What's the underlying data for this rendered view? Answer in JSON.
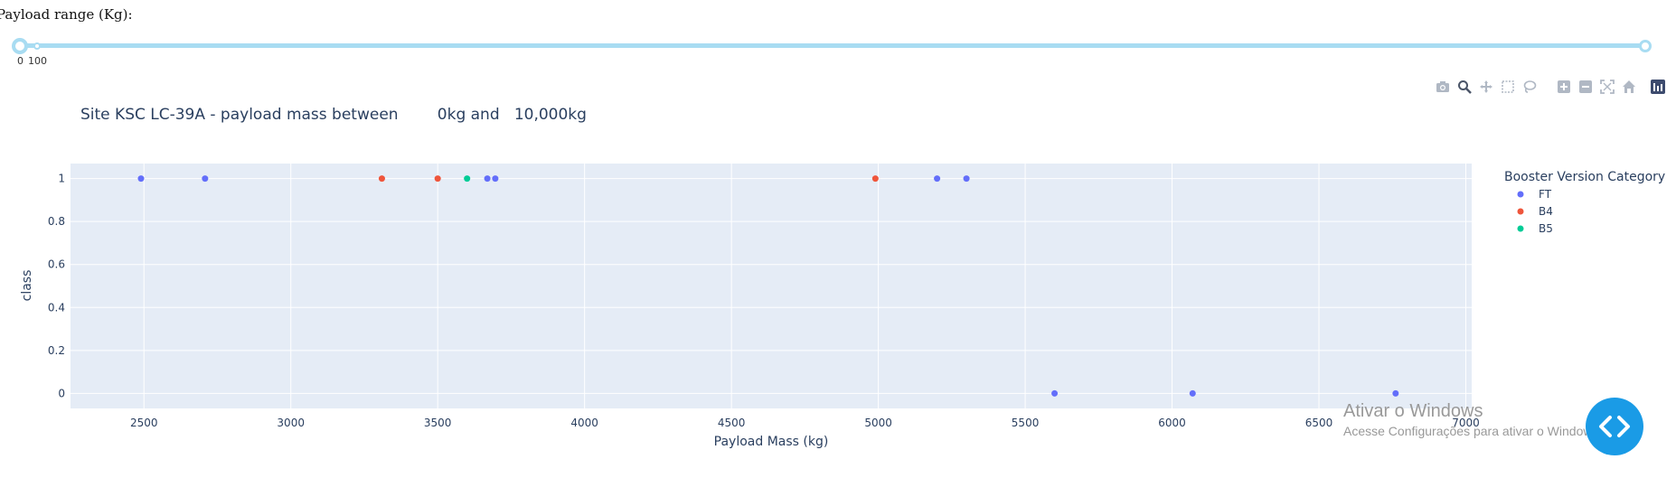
{
  "slider": {
    "label": "Payload range (Kg):",
    "min_label": "0",
    "max_label": "100"
  },
  "modebar": [
    "camera-icon",
    "zoom-icon",
    "pan-icon",
    "box-select-icon",
    "lasso-icon",
    "zoom-in-icon",
    "zoom-out-icon",
    "autoscale-icon",
    "reset-axes-icon",
    "plotly-logo-icon"
  ],
  "watermark": {
    "title": "Ativar o Windows",
    "subtitle": "Acesse Configurações para ativar o Windows."
  },
  "chart_data": {
    "type": "scatter",
    "title": "Site KSC LC-39A - payload mass between        0kg and   10,000kg",
    "xlabel": "Payload Mass (kg)",
    "ylabel": "class",
    "xlim": [
      2250,
      7020
    ],
    "ylim": [
      -0.07,
      1.07
    ],
    "xticks": [
      2500,
      3000,
      3500,
      4000,
      4500,
      5000,
      5500,
      6000,
      6500,
      7000
    ],
    "yticks": [
      0,
      0.2,
      0.4,
      0.6,
      0.8,
      1
    ],
    "legend_title": "Booster Version Category",
    "legend_position": "right",
    "series": [
      {
        "name": "FT",
        "color": "#636efa",
        "points": [
          [
            2490,
            1
          ],
          [
            2708,
            1
          ],
          [
            3669,
            1
          ],
          [
            3696,
            1
          ],
          [
            5200,
            1
          ],
          [
            5300,
            1
          ],
          [
            5600,
            0
          ],
          [
            6070,
            0
          ],
          [
            6761,
            0
          ]
        ]
      },
      {
        "name": "B4",
        "color": "#ef553b",
        "points": [
          [
            3310,
            1
          ],
          [
            3500,
            1
          ],
          [
            4990,
            1
          ]
        ]
      },
      {
        "name": "B5",
        "color": "#00cc96",
        "points": [
          [
            3600,
            1
          ]
        ]
      }
    ]
  }
}
